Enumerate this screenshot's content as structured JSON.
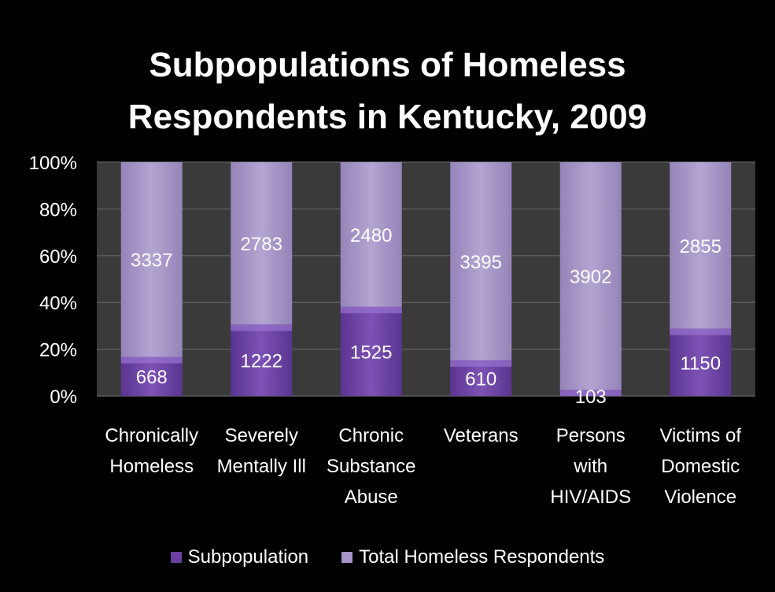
{
  "chart_data": {
    "type": "bar",
    "stacked": "percent",
    "title": "Subpopulations of Homeless Respondents in Kentucky, 2009",
    "title_lines": [
      "Subpopulations of Homeless",
      "Respondents in Kentucky, 2009"
    ],
    "categories": [
      [
        "Chronically",
        "Homeless"
      ],
      [
        "Severely",
        "Mentally Ill"
      ],
      [
        "Chronic",
        "Substance",
        "Abuse"
      ],
      [
        "Veterans"
      ],
      [
        "Persons",
        "with",
        "HIV/AIDS"
      ],
      [
        "Victims of",
        "Domestic",
        "Violence"
      ]
    ],
    "series": [
      {
        "name": "Subpopulation",
        "values": [
          668,
          1222,
          1525,
          610,
          103,
          1150
        ],
        "color": "#6b3fa0"
      },
      {
        "name": "Total Homeless Respondents",
        "values": [
          3337,
          2783,
          2480,
          3395,
          3902,
          2855
        ],
        "color": "#a594c6"
      }
    ],
    "y_ticks": [
      "0%",
      "20%",
      "40%",
      "60%",
      "80%",
      "100%"
    ],
    "ylim": [
      0,
      100
    ],
    "grid": true,
    "legend_position": "bottom",
    "background": "#000000",
    "plot_background": "#3a3a3a"
  }
}
